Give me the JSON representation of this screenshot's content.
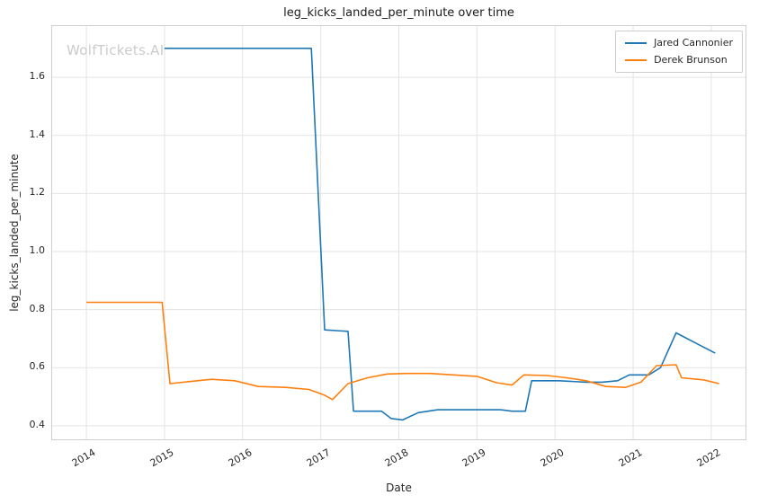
{
  "chart_data": {
    "type": "line",
    "title": "leg_kicks_landed_per_minute over time",
    "xlabel": "Date",
    "ylabel": "leg_kicks_landed_per_minute",
    "watermark": "WolfTickets.AI",
    "grid": true,
    "legend_position": "upper right",
    "xlim": [
      2013.55,
      2022.45
    ],
    "ylim": [
      0.35,
      1.78
    ],
    "x_ticks": [
      2014,
      2015,
      2016,
      2017,
      2018,
      2019,
      2020,
      2021,
      2022
    ],
    "y_ticks": [
      0.4,
      0.6,
      0.8,
      1.0,
      1.2,
      1.4,
      1.6
    ],
    "series": [
      {
        "name": "Jared Cannonier",
        "color": "#1f77b4",
        "x": [
          2015.0,
          2016.88,
          2017.05,
          2017.35,
          2017.42,
          2017.78,
          2017.9,
          2018.05,
          2018.25,
          2018.5,
          2018.9,
          2019.3,
          2019.45,
          2019.62,
          2019.7,
          2020.05,
          2020.4,
          2020.6,
          2020.8,
          2020.95,
          2021.2,
          2021.35,
          2021.55,
          2021.8,
          2022.05
        ],
        "y": [
          1.7,
          1.7,
          0.73,
          0.725,
          0.45,
          0.45,
          0.425,
          0.42,
          0.445,
          0.455,
          0.455,
          0.455,
          0.45,
          0.45,
          0.555,
          0.555,
          0.55,
          0.55,
          0.555,
          0.575,
          0.575,
          0.6,
          0.72,
          0.685,
          0.65
        ]
      },
      {
        "name": "Derek Brunson",
        "color": "#ff7f0e",
        "x": [
          2014.0,
          2014.97,
          2015.07,
          2015.35,
          2015.6,
          2015.9,
          2016.2,
          2016.55,
          2016.85,
          2017.05,
          2017.15,
          2017.35,
          2017.6,
          2017.85,
          2018.1,
          2018.4,
          2018.7,
          2019.0,
          2019.25,
          2019.45,
          2019.6,
          2019.9,
          2020.15,
          2020.4,
          2020.65,
          2020.9,
          2021.1,
          2021.3,
          2021.55,
          2021.62,
          2021.9,
          2022.1
        ],
        "y": [
          0.825,
          0.825,
          0.545,
          0.553,
          0.56,
          0.555,
          0.535,
          0.532,
          0.525,
          0.505,
          0.49,
          0.545,
          0.565,
          0.578,
          0.58,
          0.58,
          0.575,
          0.57,
          0.548,
          0.54,
          0.575,
          0.573,
          0.565,
          0.555,
          0.535,
          0.532,
          0.55,
          0.607,
          0.61,
          0.565,
          0.558,
          0.545
        ]
      }
    ]
  }
}
